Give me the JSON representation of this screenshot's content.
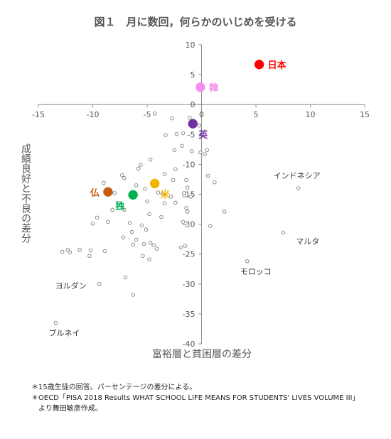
{
  "chart_data": {
    "type": "scatter",
    "title": "図１　月に数回，何らかのいじめを受ける",
    "xlabel": "富裕層と貧困層の差分",
    "ylabel": "成績良好と不良の差分",
    "xlim": [
      -15,
      15
    ],
    "ylim": [
      -40,
      10
    ],
    "x_ticks": [
      -15,
      -10,
      -5,
      0,
      5,
      10,
      15
    ],
    "y_ticks": [
      10,
      5,
      0,
      -5,
      -10,
      -15,
      -20,
      -25,
      -30,
      -35,
      -40
    ],
    "grid": false,
    "highlighted": [
      {
        "label": "日本",
        "x": 5.3,
        "y": 6.7,
        "color": "#ff0000",
        "label_pos": "right"
      },
      {
        "label": "韓",
        "x": -0.1,
        "y": 2.9,
        "color": "#f58cf0",
        "label_pos": "right"
      },
      {
        "label": "英",
        "x": -0.8,
        "y": -3.2,
        "color": "#7030a0",
        "label_pos": "below-right"
      },
      {
        "label": "仏",
        "x": -8.6,
        "y": -14.6,
        "color": "#c55a11",
        "label_pos": "left"
      },
      {
        "label": "独",
        "x": -6.3,
        "y": -15.1,
        "color": "#00b050",
        "label_pos": "below-left"
      },
      {
        "label": "米",
        "x": -4.3,
        "y": -13.2,
        "color": "#f0b400",
        "label_pos": "below-right"
      }
    ],
    "labeled": [
      {
        "label": "インドネシア",
        "x": 8.9,
        "y": -14.0,
        "label_pos": "above-left"
      },
      {
        "label": "マルタ",
        "x": 7.5,
        "y": -21.4,
        "label_pos": "below-right"
      },
      {
        "label": "モロッコ",
        "x": 4.2,
        "y": -26.2,
        "label_pos": "below"
      },
      {
        "label": "ヨルダン",
        "x": -9.4,
        "y": -30.0,
        "label_pos": "left"
      },
      {
        "label": "ブルネイ",
        "x": -13.4,
        "y": -36.5,
        "label_pos": "below"
      }
    ],
    "others": [
      [
        -4.3,
        -1.5
      ],
      [
        -2.7,
        -2.3
      ],
      [
        -1.1,
        -2.2
      ],
      [
        -0.2,
        -3.5
      ],
      [
        -1.7,
        -4.8
      ],
      [
        -2.3,
        -4.9
      ],
      [
        -3.3,
        -5.1
      ],
      [
        -1.8,
        -6.9
      ],
      [
        -2.5,
        -7.6
      ],
      [
        -0.9,
        -7.8
      ],
      [
        -0.1,
        -8.0
      ],
      [
        0.3,
        -8.3
      ],
      [
        0.5,
        -7.6
      ],
      [
        -4.7,
        -9.2
      ],
      [
        -5.6,
        -10.1
      ],
      [
        -5.8,
        -10.7
      ],
      [
        -2.4,
        -10.8
      ],
      [
        -3.4,
        -11.6
      ],
      [
        -1.4,
        -12.6
      ],
      [
        0.6,
        -11.9
      ],
      [
        -7.3,
        -11.8
      ],
      [
        -7.1,
        -12.3
      ],
      [
        -9.0,
        -13.1
      ],
      [
        -2.6,
        -12.6
      ],
      [
        -1.3,
        -13.9
      ],
      [
        1.2,
        -13.0
      ],
      [
        -6.0,
        -13.5
      ],
      [
        -5.2,
        -14.1
      ],
      [
        -3.6,
        -14.9
      ],
      [
        -4.0,
        -14.7
      ],
      [
        -2.8,
        -15.4
      ],
      [
        -1.6,
        -15.2
      ],
      [
        -1.0,
        -15.4
      ],
      [
        -1.6,
        -14.8
      ],
      [
        -8.0,
        -14.8
      ],
      [
        -7.6,
        -16.5
      ],
      [
        -5.0,
        -16.2
      ],
      [
        -2.4,
        -16.4
      ],
      [
        -3.4,
        -16.5
      ],
      [
        -8.2,
        -17.6
      ],
      [
        -7.1,
        -17.6
      ],
      [
        -1.4,
        -17.3
      ],
      [
        -1.3,
        -17.9
      ],
      [
        2.1,
        -17.9
      ],
      [
        -4.8,
        -18.3
      ],
      [
        -3.7,
        -18.8
      ],
      [
        -9.6,
        -18.9
      ],
      [
        -8.6,
        -19.6
      ],
      [
        -6.6,
        -19.8
      ],
      [
        -5.5,
        -20.2
      ],
      [
        -5.1,
        -20.9
      ],
      [
        -1.7,
        -19.6
      ],
      [
        -1.3,
        -20.2
      ],
      [
        0.8,
        -20.3
      ],
      [
        -10.0,
        -19.9
      ],
      [
        -6.4,
        -21.3
      ],
      [
        -7.2,
        -22.2
      ],
      [
        -6.0,
        -22.6
      ],
      [
        -5.3,
        -23.3
      ],
      [
        -4.7,
        -23.1
      ],
      [
        -4.4,
        -23.5
      ],
      [
        -6.3,
        -23.4
      ],
      [
        -4.1,
        -24.1
      ],
      [
        -1.5,
        -23.6
      ],
      [
        -1.9,
        -23.9
      ],
      [
        -12.3,
        -24.3
      ],
      [
        -12.8,
        -24.6
      ],
      [
        -12.1,
        -24.7
      ],
      [
        -11.2,
        -24.3
      ],
      [
        -10.2,
        -24.4
      ],
      [
        -8.9,
        -24.5
      ],
      [
        -10.3,
        -25.3
      ],
      [
        -5.4,
        -25.3
      ],
      [
        -4.8,
        -25.9
      ],
      [
        -7.0,
        -28.9
      ],
      [
        -6.3,
        -31.8
      ]
    ]
  },
  "notes": [
    "＊15歳生徒の回答。パーセンテージの差分による。",
    "＊OECD「PISA 2018 Results WHAT SCHOOL LIFE MEANS FOR STUDENTS' LIVES VOLUME III」",
    "　より舞田敏彦作成。"
  ]
}
